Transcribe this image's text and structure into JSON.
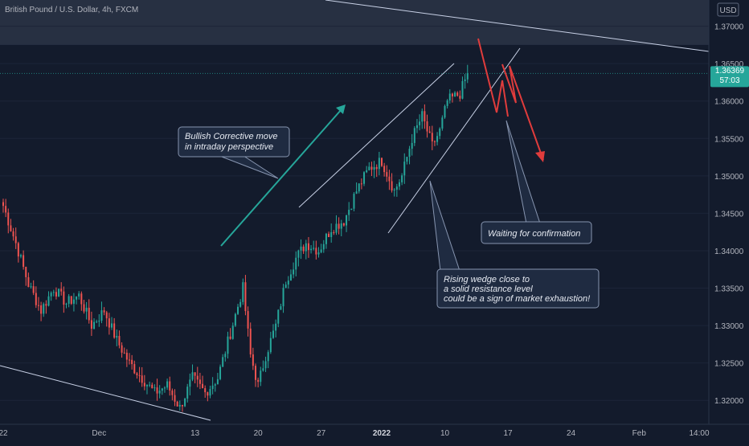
{
  "chart_title": "British Pound / U.S. Dollar, 4h, FXCM",
  "currency_badge": "USD",
  "price_badge": {
    "price": "1.36369",
    "countdown": "57:03"
  },
  "colors": {
    "background": "#131b2c",
    "zone": "#2b3447",
    "bull": "#26a69a",
    "bear": "#ef5350",
    "trendline": "#c8d1e6",
    "arrow_up": "#26a69a",
    "arrow_down": "#e03c3c",
    "callout_bg": "#1f2b41",
    "callout_border": "#8795b0",
    "axis_text": "#b2b5be"
  },
  "chart_data": {
    "type": "candlestick",
    "title": "British Pound / U.S. Dollar, 4h, FXCM",
    "ylim": [
      1.3168,
      1.3735
    ],
    "y_ticks": [
      "1.37000",
      "1.36500",
      "1.36000",
      "1.35500",
      "1.35000",
      "1.34500",
      "1.34000",
      "1.33500",
      "1.33000",
      "1.32500",
      "1.32000"
    ],
    "y_tick_values": [
      1.37,
      1.365,
      1.36,
      1.355,
      1.35,
      1.345,
      1.34,
      1.335,
      1.33,
      1.325,
      1.32
    ],
    "x_ticks": [
      "22",
      "Dec",
      "13",
      "20",
      "27",
      "2022",
      "10",
      "17",
      "24",
      "Feb",
      "14:00"
    ],
    "x_tick_bars": [
      0,
      38,
      76,
      101,
      126,
      150,
      175,
      200,
      225,
      252,
      280
    ],
    "last_price": 1.36369,
    "resistance_zone": [
      1.3675,
      1.3735
    ],
    "series": [
      {
        "name": "GBPUSD",
        "ohlc_anchors": [
          [
            0,
            1.346
          ],
          [
            5,
            1.341
          ],
          [
            10,
            1.3355
          ],
          [
            15,
            1.332
          ],
          [
            20,
            1.335
          ],
          [
            25,
            1.333
          ],
          [
            30,
            1.334
          ],
          [
            35,
            1.33
          ],
          [
            40,
            1.332
          ],
          [
            45,
            1.328
          ],
          [
            50,
            1.325
          ],
          [
            55,
            1.323
          ],
          [
            60,
            1.321
          ],
          [
            65,
            1.322
          ],
          [
            70,
            1.319
          ],
          [
            75,
            1.323
          ],
          [
            80,
            1.321
          ],
          [
            85,
            1.323
          ],
          [
            90,
            1.329
          ],
          [
            95,
            1.335
          ],
          [
            98,
            1.326
          ],
          [
            101,
            1.322
          ],
          [
            104,
            1.326
          ],
          [
            108,
            1.33
          ],
          [
            112,
            1.336
          ],
          [
            116,
            1.339
          ],
          [
            120,
            1.341
          ],
          [
            125,
            1.34
          ],
          [
            130,
            1.343
          ],
          [
            135,
            1.344
          ],
          [
            140,
            1.348
          ],
          [
            145,
            1.351
          ],
          [
            150,
            1.352
          ],
          [
            155,
            1.348
          ],
          [
            158,
            1.35
          ],
          [
            162,
            1.355
          ],
          [
            166,
            1.358
          ],
          [
            170,
            1.354
          ],
          [
            173,
            1.356
          ],
          [
            176,
            1.36
          ],
          [
            181,
            1.361
          ],
          [
            184,
            1.3637
          ]
        ]
      }
    ],
    "annotations": [
      "Bullish Corrective move in intraday perspective",
      "Waiting for confirmation",
      "Rising wedge close to a solid resistance level could be a sign of market exhaustion!"
    ]
  },
  "callouts": {
    "bullish": {
      "line1": "Bullish Corrective move",
      "line2": "in intraday perspective"
    },
    "waiting": {
      "line1": "Waiting for confirmation"
    },
    "wedge": {
      "line1": "Rising wedge close to",
      "line2": "a solid resistance level",
      "line3": "could be a sign of market exhaustion!"
    }
  }
}
